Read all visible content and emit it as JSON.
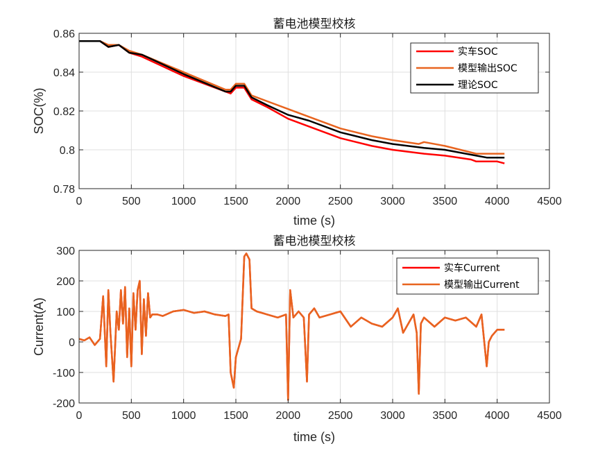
{
  "chart_data": [
    {
      "type": "line",
      "title": "蓄电池模型校核",
      "xlabel": "time (s)",
      "ylabel": "SOC(%)",
      "xlim": [
        0,
        4500
      ],
      "ylim": [
        0.78,
        0.86
      ],
      "xticks": [
        0,
        500,
        1000,
        1500,
        2000,
        2500,
        3000,
        3500,
        4000,
        4500
      ],
      "yticks": [
        0.78,
        0.8,
        0.82,
        0.84,
        0.86
      ],
      "xtick_labels": [
        "0",
        "500",
        "1000",
        "1500",
        "2000",
        "2500",
        "3000",
        "3500",
        "4000",
        "4500"
      ],
      "ytick_labels": [
        "0.78",
        "0.8",
        "0.82",
        "0.84",
        "0.86"
      ],
      "grid": true,
      "legend_position": "top-right",
      "series": [
        {
          "name": "实车SOC",
          "color": "#ff0000",
          "x": [
            0,
            200,
            280,
            380,
            480,
            600,
            1000,
            1400,
            1450,
            1500,
            1580,
            1650,
            1800,
            2000,
            2200,
            2500,
            2800,
            3000,
            3300,
            3500,
            3750,
            3800,
            4000,
            4070
          ],
          "y": [
            0.856,
            0.856,
            0.853,
            0.854,
            0.85,
            0.848,
            0.838,
            0.83,
            0.829,
            0.832,
            0.832,
            0.826,
            0.822,
            0.816,
            0.812,
            0.806,
            0.802,
            0.8,
            0.798,
            0.797,
            0.795,
            0.794,
            0.794,
            0.793
          ]
        },
        {
          "name": "模型输出SOC",
          "color": "#e8641f",
          "x": [
            0,
            200,
            280,
            380,
            480,
            600,
            1000,
            1400,
            1450,
            1500,
            1580,
            1650,
            1800,
            2000,
            2200,
            2500,
            2800,
            3000,
            3250,
            3300,
            3500,
            3800,
            3900,
            4070
          ],
          "y": [
            0.856,
            0.856,
            0.854,
            0.854,
            0.851,
            0.849,
            0.84,
            0.831,
            0.831,
            0.834,
            0.834,
            0.828,
            0.825,
            0.821,
            0.817,
            0.811,
            0.807,
            0.805,
            0.803,
            0.804,
            0.802,
            0.798,
            0.798,
            0.798
          ]
        },
        {
          "name": "理论SOC",
          "color": "#000000",
          "x": [
            0,
            200,
            280,
            380,
            480,
            600,
            1000,
            1400,
            1450,
            1500,
            1580,
            1650,
            1800,
            2000,
            2200,
            2500,
            2800,
            3000,
            3300,
            3500,
            3800,
            3900,
            4070
          ],
          "y": [
            0.856,
            0.856,
            0.853,
            0.854,
            0.85,
            0.849,
            0.839,
            0.83,
            0.83,
            0.833,
            0.833,
            0.827,
            0.823,
            0.818,
            0.815,
            0.809,
            0.805,
            0.803,
            0.801,
            0.8,
            0.797,
            0.796,
            0.796
          ]
        }
      ]
    },
    {
      "type": "line",
      "title": "蓄电池模型校核",
      "xlabel": "time (s)",
      "ylabel": "Current(A)",
      "xlim": [
        0,
        4500
      ],
      "ylim": [
        -200,
        300
      ],
      "xticks": [
        0,
        500,
        1000,
        1500,
        2000,
        2500,
        3000,
        3500,
        4000,
        4500
      ],
      "yticks": [
        -200,
        -100,
        0,
        100,
        200,
        300
      ],
      "xtick_labels": [
        "0",
        "500",
        "1000",
        "1500",
        "2000",
        "2500",
        "3000",
        "3500",
        "4000",
        "4500"
      ],
      "ytick_labels": [
        "-200",
        "-100",
        "0",
        "100",
        "200",
        "300"
      ],
      "grid": true,
      "legend_position": "top-right",
      "series": [
        {
          "name": "实车Current",
          "color": "#ff0000",
          "x": [
            0,
            50,
            100,
            150,
            200,
            230,
            260,
            280,
            300,
            330,
            360,
            380,
            400,
            420,
            440,
            460,
            480,
            500,
            520,
            540,
            560,
            580,
            600,
            620,
            640,
            660,
            680,
            700,
            750,
            800,
            900,
            1000,
            1100,
            1200,
            1300,
            1400,
            1430,
            1450,
            1480,
            1500,
            1550,
            1580,
            1600,
            1630,
            1650,
            1700,
            1800,
            1900,
            1980,
            2000,
            2020,
            2050,
            2100,
            2150,
            2180,
            2200,
            2250,
            2300,
            2400,
            2500,
            2600,
            2700,
            2800,
            2900,
            3000,
            3050,
            3100,
            3200,
            3230,
            3250,
            3270,
            3300,
            3400,
            3500,
            3600,
            3700,
            3800,
            3850,
            3900,
            3920,
            3950,
            4000,
            4070
          ],
          "y": [
            10,
            5,
            15,
            -10,
            10,
            150,
            -80,
            170,
            30,
            -130,
            100,
            40,
            170,
            60,
            180,
            -50,
            110,
            -80,
            160,
            40,
            170,
            200,
            -40,
            140,
            20,
            160,
            80,
            90,
            90,
            85,
            100,
            105,
            95,
            100,
            90,
            85,
            90,
            -100,
            -150,
            -50,
            10,
            280,
            290,
            270,
            110,
            100,
            90,
            80,
            90,
            -190,
            170,
            80,
            100,
            80,
            -130,
            90,
            110,
            80,
            90,
            100,
            50,
            80,
            60,
            50,
            80,
            110,
            30,
            90,
            30,
            -170,
            60,
            80,
            50,
            80,
            70,
            80,
            50,
            90,
            -80,
            0,
            20,
            40,
            40
          ]
        },
        {
          "name": "模型输出Current",
          "color": "#e8641f",
          "x": [
            0,
            50,
            100,
            150,
            200,
            230,
            260,
            280,
            300,
            330,
            360,
            380,
            400,
            420,
            440,
            460,
            480,
            500,
            520,
            540,
            560,
            580,
            600,
            620,
            640,
            660,
            680,
            700,
            750,
            800,
            900,
            1000,
            1100,
            1200,
            1300,
            1400,
            1430,
            1450,
            1480,
            1500,
            1550,
            1580,
            1600,
            1630,
            1650,
            1700,
            1800,
            1900,
            1980,
            2000,
            2020,
            2050,
            2100,
            2150,
            2180,
            2200,
            2250,
            2300,
            2400,
            2500,
            2600,
            2700,
            2800,
            2900,
            3000,
            3050,
            3100,
            3200,
            3230,
            3250,
            3270,
            3300,
            3400,
            3500,
            3600,
            3700,
            3800,
            3850,
            3900,
            3920,
            3950,
            4000,
            4070
          ],
          "y": [
            10,
            5,
            15,
            -10,
            10,
            150,
            -80,
            170,
            30,
            -130,
            100,
            40,
            170,
            60,
            180,
            -50,
            110,
            -80,
            160,
            40,
            170,
            200,
            -40,
            140,
            20,
            160,
            80,
            90,
            90,
            85,
            100,
            105,
            95,
            100,
            90,
            85,
            90,
            -100,
            -150,
            -50,
            10,
            280,
            290,
            270,
            110,
            100,
            90,
            80,
            90,
            -190,
            170,
            80,
            100,
            80,
            -130,
            90,
            110,
            80,
            90,
            100,
            50,
            80,
            60,
            50,
            80,
            110,
            30,
            90,
            30,
            -170,
            60,
            80,
            50,
            80,
            70,
            80,
            50,
            90,
            -80,
            0,
            20,
            40,
            40
          ]
        }
      ]
    }
  ]
}
